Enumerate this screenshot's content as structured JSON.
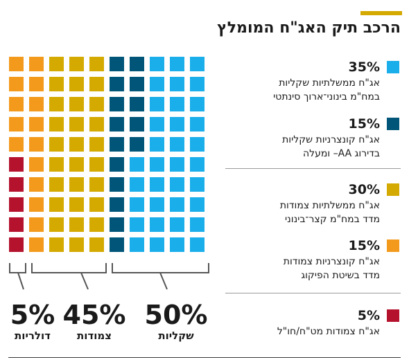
{
  "title": "הרכב תיק האג\"ח המומלץ",
  "colors": {
    "accent": "#d4a900",
    "teal_dark": "#005578",
    "sky": "#1aaeea",
    "mustard": "#d4a900",
    "orange": "#f39a1d",
    "crimson": "#b5122e",
    "bracket": "#555555"
  },
  "legend": [
    {
      "percent": "35%",
      "line1": "אג\"ח ממשלתיות שקליות",
      "line2": "במח\"מ בינוני־ארוך סינתטי",
      "color": "#1aaeea"
    },
    {
      "percent": "15%",
      "line1": "אג\"ח קונצרניות שקליות",
      "line2": "בדירוג AA– ומעלה",
      "color": "#005578"
    },
    {
      "percent": "30%",
      "line1": "אג\"ח ממשלתיות צמודות",
      "line2": "מדד במח\"מ קצר־בינוני",
      "color": "#d4a900"
    },
    {
      "percent": "15%",
      "line1": "אג\"ח קונצרניות צמודות",
      "line2": "מדד בשיטת הפיקוג",
      "color": "#f39a1d"
    },
    {
      "percent": "5%",
      "line1": "אג\"ח צמודות מט\"ח/חו\"ל",
      "line2": "",
      "color": "#b5122e"
    }
  ],
  "chart_data": {
    "type": "waffle",
    "grid": {
      "columns": 10,
      "rows": 10,
      "unit_percent": 1
    },
    "series": [
      {
        "name": "אג\"ח ממשלתיות שקליות במח\"מ בינוני־ארוך סינתטי",
        "value": 35,
        "color": "#1aaeea"
      },
      {
        "name": "אג\"ח קונצרניות שקליות בדירוג AA– ומעלה",
        "value": 15,
        "color": "#005578"
      },
      {
        "name": "אג\"ח ממשלתיות צמודות מדד במח\"מ קצר־בינוני",
        "value": 30,
        "color": "#d4a900"
      },
      {
        "name": "אג\"ח קונצרניות צמודות מדד בשיטת הפיקוג",
        "value": 15,
        "color": "#f39a1d"
      },
      {
        "name": "אג\"ח צמודות מט\"ח/חו\"ל",
        "value": 5,
        "color": "#b5122e"
      }
    ],
    "column_fills": [
      [
        "#1aaeea",
        "#1aaeea",
        "#1aaeea",
        "#1aaeea",
        "#1aaeea",
        "#1aaeea",
        "#1aaeea",
        "#1aaeea",
        "#1aaeea",
        "#1aaeea"
      ],
      [
        "#1aaeea",
        "#1aaeea",
        "#1aaeea",
        "#1aaeea",
        "#1aaeea",
        "#1aaeea",
        "#1aaeea",
        "#1aaeea",
        "#1aaeea",
        "#1aaeea"
      ],
      [
        "#1aaeea",
        "#1aaeea",
        "#1aaeea",
        "#1aaeea",
        "#1aaeea",
        "#1aaeea",
        "#1aaeea",
        "#1aaeea",
        "#1aaeea",
        "#1aaeea"
      ],
      [
        "#005578",
        "#005578",
        "#005578",
        "#005578",
        "#005578",
        "#1aaeea",
        "#1aaeea",
        "#1aaeea",
        "#1aaeea",
        "#1aaeea"
      ],
      [
        "#005578",
        "#005578",
        "#005578",
        "#005578",
        "#005578",
        "#005578",
        "#005578",
        "#005578",
        "#005578",
        "#005578"
      ],
      [
        "#d4a900",
        "#d4a900",
        "#d4a900",
        "#d4a900",
        "#d4a900",
        "#d4a900",
        "#d4a900",
        "#d4a900",
        "#d4a900",
        "#d4a900"
      ],
      [
        "#d4a900",
        "#d4a900",
        "#d4a900",
        "#d4a900",
        "#d4a900",
        "#d4a900",
        "#d4a900",
        "#d4a900",
        "#d4a900",
        "#d4a900"
      ],
      [
        "#d4a900",
        "#d4a900",
        "#d4a900",
        "#d4a900",
        "#d4a900",
        "#d4a900",
        "#d4a900",
        "#d4a900",
        "#d4a900",
        "#d4a900"
      ],
      [
        "#f39a1d",
        "#f39a1d",
        "#f39a1d",
        "#f39a1d",
        "#f39a1d",
        "#f39a1d",
        "#f39a1d",
        "#f39a1d",
        "#f39a1d",
        "#f39a1d"
      ],
      [
        "#f39a1d",
        "#f39a1d",
        "#f39a1d",
        "#f39a1d",
        "#f39a1d",
        "#b5122e",
        "#b5122e",
        "#b5122e",
        "#b5122e",
        "#b5122e"
      ]
    ],
    "groups": [
      {
        "label": "שקליות",
        "percent": "50%"
      },
      {
        "label": "צמודות",
        "percent": "45%"
      },
      {
        "label": "דולריות",
        "percent": "5%"
      }
    ]
  }
}
